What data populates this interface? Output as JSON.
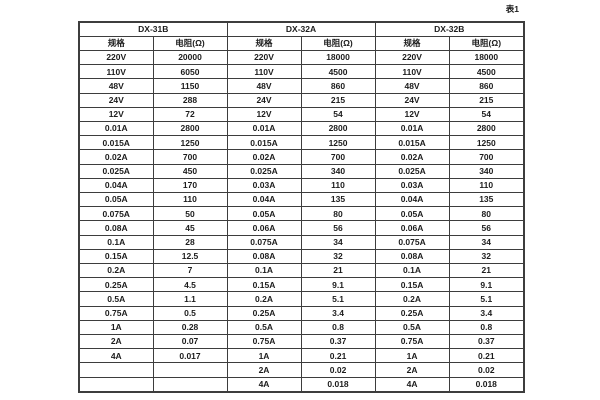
{
  "caption": "表1",
  "table": {
    "groups": [
      {
        "name": "DX-31B",
        "col_headers": [
          "规格",
          "电阻(Ω)"
        ],
        "rows": [
          [
            "220V",
            "20000"
          ],
          [
            "110V",
            "6050"
          ],
          [
            "48V",
            "1150"
          ],
          [
            "24V",
            "288"
          ],
          [
            "12V",
            "72"
          ],
          [
            "0.01A",
            "2800"
          ],
          [
            "0.015A",
            "1250"
          ],
          [
            "0.02A",
            "700"
          ],
          [
            "0.025A",
            "450"
          ],
          [
            "0.04A",
            "170"
          ],
          [
            "0.05A",
            "110"
          ],
          [
            "0.075A",
            "50"
          ],
          [
            "0.08A",
            "45"
          ],
          [
            "0.1A",
            "28"
          ],
          [
            "0.15A",
            "12.5"
          ],
          [
            "0.2A",
            "7"
          ],
          [
            "0.25A",
            "4.5"
          ],
          [
            "0.5A",
            "1.1"
          ],
          [
            "0.75A",
            "0.5"
          ],
          [
            "1A",
            "0.28"
          ],
          [
            "2A",
            "0.07"
          ],
          [
            "4A",
            "0.017"
          ],
          [
            "",
            ""
          ],
          [
            "",
            ""
          ]
        ]
      },
      {
        "name": "DX-32A",
        "col_headers": [
          "规格",
          "电阻(Ω)"
        ],
        "rows": [
          [
            "220V",
            "18000"
          ],
          [
            "110V",
            "4500"
          ],
          [
            "48V",
            "860"
          ],
          [
            "24V",
            "215"
          ],
          [
            "12V",
            "54"
          ],
          [
            "0.01A",
            "2800"
          ],
          [
            "0.015A",
            "1250"
          ],
          [
            "0.02A",
            "700"
          ],
          [
            "0.025A",
            "340"
          ],
          [
            "0.03A",
            "110"
          ],
          [
            "0.04A",
            "135"
          ],
          [
            "0.05A",
            "80"
          ],
          [
            "0.06A",
            "56"
          ],
          [
            "0.075A",
            "34"
          ],
          [
            "0.08A",
            "32"
          ],
          [
            "0.1A",
            "21"
          ],
          [
            "0.15A",
            "9.1"
          ],
          [
            "0.2A",
            "5.1"
          ],
          [
            "0.25A",
            "3.4"
          ],
          [
            "0.5A",
            "0.8"
          ],
          [
            "0.75A",
            "0.37"
          ],
          [
            "1A",
            "0.21"
          ],
          [
            "2A",
            "0.02"
          ],
          [
            "4A",
            "0.018"
          ]
        ]
      },
      {
        "name": "DX-32B",
        "col_headers": [
          "规格",
          "电阻(Ω)"
        ],
        "rows": [
          [
            "220V",
            "18000"
          ],
          [
            "110V",
            "4500"
          ],
          [
            "48V",
            "860"
          ],
          [
            "24V",
            "215"
          ],
          [
            "12V",
            "54"
          ],
          [
            "0.01A",
            "2800"
          ],
          [
            "0.015A",
            "1250"
          ],
          [
            "0.02A",
            "700"
          ],
          [
            "0.025A",
            "340"
          ],
          [
            "0.03A",
            "110"
          ],
          [
            "0.04A",
            "135"
          ],
          [
            "0.05A",
            "80"
          ],
          [
            "0.06A",
            "56"
          ],
          [
            "0.075A",
            "34"
          ],
          [
            "0.08A",
            "32"
          ],
          [
            "0.1A",
            "21"
          ],
          [
            "0.15A",
            "9.1"
          ],
          [
            "0.2A",
            "5.1"
          ],
          [
            "0.25A",
            "3.4"
          ],
          [
            "0.5A",
            "0.8"
          ],
          [
            "0.75A",
            "0.37"
          ],
          [
            "1A",
            "0.21"
          ],
          [
            "2A",
            "0.02"
          ],
          [
            "4A",
            "0.018"
          ]
        ]
      }
    ]
  }
}
